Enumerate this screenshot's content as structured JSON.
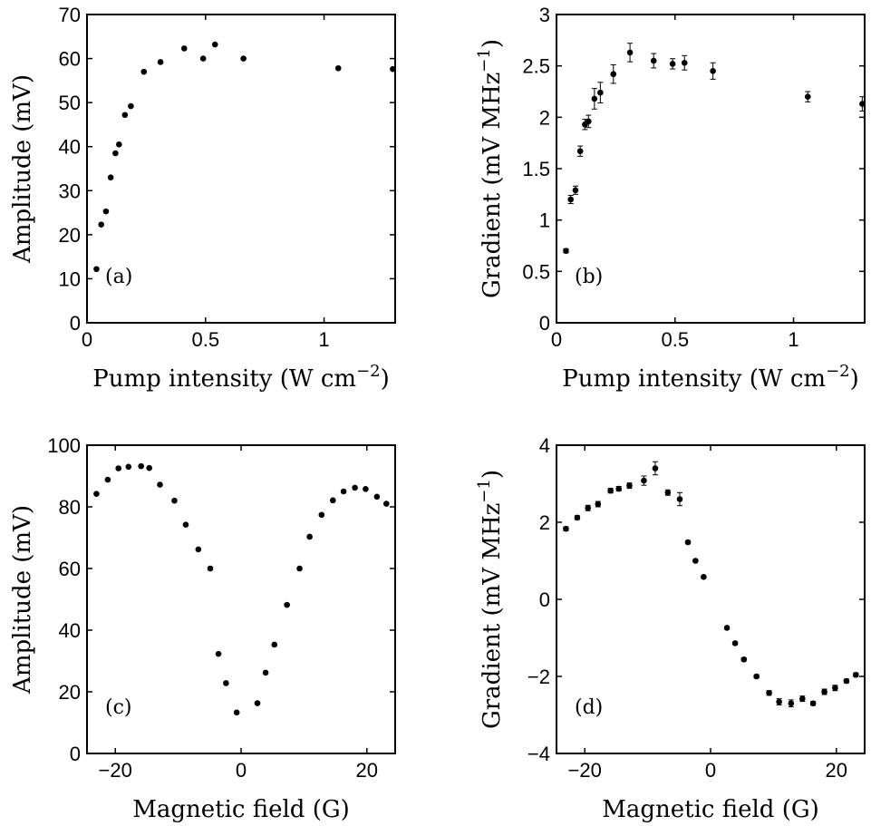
{
  "chart_data": [
    {
      "id": "a",
      "type": "scatter",
      "panel_label": "(a)",
      "xlabel": "Pump intensity (W cm",
      "xlabel_sup": "−2",
      "xlabel_close": ")",
      "ylabel": "Amplitude (mV)",
      "xlim": [
        0,
        1.3
      ],
      "ylim": [
        0,
        70
      ],
      "xticks": [
        {
          "v": 0,
          "t": "0"
        },
        {
          "v": 0.5,
          "t": "0.5"
        },
        {
          "v": 1,
          "t": "1"
        }
      ],
      "yticks": [
        {
          "v": 0,
          "t": "0"
        },
        {
          "v": 10,
          "t": "10"
        },
        {
          "v": 20,
          "t": "20"
        },
        {
          "v": 30,
          "t": "30"
        },
        {
          "v": 40,
          "t": "40"
        },
        {
          "v": 50,
          "t": "50"
        },
        {
          "v": 60,
          "t": "60"
        },
        {
          "v": 70,
          "t": "70"
        }
      ],
      "points": [
        {
          "x": 0.04,
          "y": 12.2
        },
        {
          "x": 0.06,
          "y": 22.3
        },
        {
          "x": 0.08,
          "y": 25.3
        },
        {
          "x": 0.1,
          "y": 33.0
        },
        {
          "x": 0.12,
          "y": 38.5
        },
        {
          "x": 0.135,
          "y": 40.5
        },
        {
          "x": 0.16,
          "y": 47.2
        },
        {
          "x": 0.185,
          "y": 49.2
        },
        {
          "x": 0.24,
          "y": 57.0
        },
        {
          "x": 0.31,
          "y": 59.2
        },
        {
          "x": 0.41,
          "y": 62.3
        },
        {
          "x": 0.49,
          "y": 60.0
        },
        {
          "x": 0.54,
          "y": 63.2
        },
        {
          "x": 0.66,
          "y": 60.0
        },
        {
          "x": 1.06,
          "y": 57.8
        },
        {
          "x": 1.29,
          "y": 57.6
        }
      ]
    },
    {
      "id": "b",
      "type": "scatter",
      "panel_label": "(b)",
      "xlabel": "Pump intensity (W cm",
      "xlabel_sup": "−2",
      "xlabel_close": ")",
      "ylabel": "Gradient (mV MHz",
      "ylabel_sup": "−1",
      "ylabel_close": ")",
      "xlim": [
        0,
        1.3
      ],
      "ylim": [
        0,
        3
      ],
      "xticks": [
        {
          "v": 0,
          "t": "0"
        },
        {
          "v": 0.5,
          "t": "0.5"
        },
        {
          "v": 1,
          "t": "1"
        }
      ],
      "yticks": [
        {
          "v": 0,
          "t": "0"
        },
        {
          "v": 0.5,
          "t": "0.5"
        },
        {
          "v": 1,
          "t": "1"
        },
        {
          "v": 1.5,
          "t": "1.5"
        },
        {
          "v": 2,
          "t": "2"
        },
        {
          "v": 2.5,
          "t": "2.5"
        },
        {
          "v": 3,
          "t": "3"
        }
      ],
      "points": [
        {
          "x": 0.04,
          "y": 0.7,
          "err": 0.02
        },
        {
          "x": 0.06,
          "y": 1.2,
          "err": 0.04
        },
        {
          "x": 0.08,
          "y": 1.29,
          "err": 0.04
        },
        {
          "x": 0.1,
          "y": 1.67,
          "err": 0.05
        },
        {
          "x": 0.12,
          "y": 1.93,
          "err": 0.05
        },
        {
          "x": 0.135,
          "y": 1.96,
          "err": 0.06
        },
        {
          "x": 0.16,
          "y": 2.18,
          "err": 0.1
        },
        {
          "x": 0.185,
          "y": 2.24,
          "err": 0.1
        },
        {
          "x": 0.24,
          "y": 2.42,
          "err": 0.09
        },
        {
          "x": 0.31,
          "y": 2.63,
          "err": 0.09
        },
        {
          "x": 0.41,
          "y": 2.55,
          "err": 0.07
        },
        {
          "x": 0.49,
          "y": 2.52,
          "err": 0.05
        },
        {
          "x": 0.54,
          "y": 2.53,
          "err": 0.07
        },
        {
          "x": 0.66,
          "y": 2.45,
          "err": 0.08
        },
        {
          "x": 1.06,
          "y": 2.2,
          "err": 0.05
        },
        {
          "x": 1.29,
          "y": 2.13,
          "err": 0.07
        }
      ]
    },
    {
      "id": "c",
      "type": "scatter",
      "panel_label": "(c)",
      "xlabel": "Magnetic field (G)",
      "ylabel": "Amplitude (mV)",
      "xlim": [
        -24.5,
        24.5
      ],
      "ylim": [
        0,
        100
      ],
      "xticks": [
        {
          "v": -20,
          "t": "−20"
        },
        {
          "v": 0,
          "t": "0"
        },
        {
          "v": 20,
          "t": "20"
        }
      ],
      "yticks": [
        {
          "v": 0,
          "t": "0"
        },
        {
          "v": 20,
          "t": "20"
        },
        {
          "v": 40,
          "t": "40"
        },
        {
          "v": 60,
          "t": "60"
        },
        {
          "v": 80,
          "t": "80"
        },
        {
          "v": 100,
          "t": "100"
        }
      ],
      "points": [
        {
          "x": -23.0,
          "y": 84.2
        },
        {
          "x": -21.2,
          "y": 88.8
        },
        {
          "x": -19.5,
          "y": 92.5
        },
        {
          "x": -17.9,
          "y": 93.0
        },
        {
          "x": -15.9,
          "y": 93.2
        },
        {
          "x": -14.6,
          "y": 92.6
        },
        {
          "x": -12.9,
          "y": 87.2
        },
        {
          "x": -10.6,
          "y": 82.0
        },
        {
          "x": -8.8,
          "y": 74.2
        },
        {
          "x": -6.8,
          "y": 66.2
        },
        {
          "x": -4.9,
          "y": 60.0
        },
        {
          "x": -3.6,
          "y": 32.3
        },
        {
          "x": -2.4,
          "y": 22.8
        },
        {
          "x": -0.7,
          "y": 13.3
        },
        {
          "x": 2.6,
          "y": 16.3
        },
        {
          "x": 3.9,
          "y": 26.2
        },
        {
          "x": 5.3,
          "y": 35.3
        },
        {
          "x": 7.3,
          "y": 48.2
        },
        {
          "x": 9.3,
          "y": 60.0
        },
        {
          "x": 10.9,
          "y": 70.3
        },
        {
          "x": 12.8,
          "y": 77.4
        },
        {
          "x": 14.6,
          "y": 82.1
        },
        {
          "x": 16.3,
          "y": 85.0
        },
        {
          "x": 18.1,
          "y": 86.2
        },
        {
          "x": 19.8,
          "y": 85.8
        },
        {
          "x": 21.6,
          "y": 83.3
        },
        {
          "x": 23.1,
          "y": 81.0
        }
      ]
    },
    {
      "id": "d",
      "type": "scatter",
      "panel_label": "(d)",
      "xlabel": "Magnetic field (G)",
      "ylabel": "Gradient (mV MHz",
      "ylabel_sup": "−1",
      "ylabel_close": ")",
      "xlim": [
        -24.5,
        24.5
      ],
      "ylim": [
        -4,
        4
      ],
      "xticks": [
        {
          "v": -20,
          "t": "−20"
        },
        {
          "v": 0,
          "t": "0"
        },
        {
          "v": 20,
          "t": "20"
        }
      ],
      "yticks": [
        {
          "v": -4,
          "t": "−4"
        },
        {
          "v": -2,
          "t": "−2"
        },
        {
          "v": 0,
          "t": "0"
        },
        {
          "v": 2,
          "t": "2"
        },
        {
          "v": 4,
          "t": "4"
        }
      ],
      "points": [
        {
          "x": -23.0,
          "y": 1.83,
          "err": 0.05
        },
        {
          "x": -21.2,
          "y": 2.12,
          "err": 0.05
        },
        {
          "x": -19.5,
          "y": 2.37,
          "err": 0.07
        },
        {
          "x": -17.9,
          "y": 2.47,
          "err": 0.07
        },
        {
          "x": -15.9,
          "y": 2.82,
          "err": 0.06
        },
        {
          "x": -14.6,
          "y": 2.87,
          "err": 0.06
        },
        {
          "x": -12.9,
          "y": 2.95,
          "err": 0.07
        },
        {
          "x": -10.6,
          "y": 3.08,
          "err": 0.12
        },
        {
          "x": -8.8,
          "y": 3.4,
          "err": 0.17
        },
        {
          "x": -6.8,
          "y": 2.77,
          "err": 0.07
        },
        {
          "x": -4.9,
          "y": 2.6,
          "err": 0.17
        },
        {
          "x": -3.6,
          "y": 1.48,
          "err": 0.04
        },
        {
          "x": -2.4,
          "y": 1.0,
          "err": 0.03
        },
        {
          "x": -1.1,
          "y": 0.58,
          "err": 0.03
        },
        {
          "x": 2.6,
          "y": -0.74,
          "err": 0.03
        },
        {
          "x": 3.9,
          "y": -1.14,
          "err": 0.03
        },
        {
          "x": 5.3,
          "y": -1.56,
          "err": 0.04
        },
        {
          "x": 7.3,
          "y": -2.0,
          "err": 0.04
        },
        {
          "x": 9.3,
          "y": -2.43,
          "err": 0.06
        },
        {
          "x": 10.9,
          "y": -2.66,
          "err": 0.08
        },
        {
          "x": 12.8,
          "y": -2.7,
          "err": 0.09
        },
        {
          "x": 14.6,
          "y": -2.58,
          "err": 0.07
        },
        {
          "x": 16.3,
          "y": -2.7,
          "err": 0.05
        },
        {
          "x": 18.1,
          "y": -2.4,
          "err": 0.07
        },
        {
          "x": 19.8,
          "y": -2.3,
          "err": 0.07
        },
        {
          "x": 21.6,
          "y": -2.12,
          "err": 0.05
        },
        {
          "x": 23.1,
          "y": -1.96,
          "err": 0.05
        }
      ]
    }
  ]
}
